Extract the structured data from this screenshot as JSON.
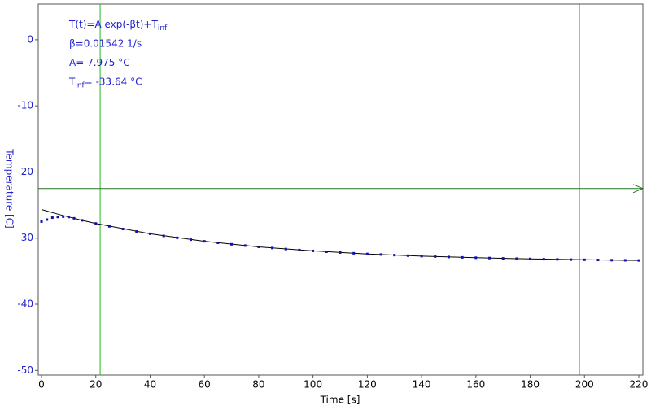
{
  "chart_data": {
    "type": "scatter",
    "x_label": "Time [s]",
    "y_label": "Temperature [C]",
    "xlim": [
      -1.2,
      221.5
    ],
    "ylim": [
      5.4,
      -50.7
    ],
    "xticks": [
      0,
      20,
      40,
      60,
      80,
      100,
      120,
      140,
      160,
      180,
      200,
      220
    ],
    "yticks": [
      0,
      -10,
      -20,
      -30,
      -40,
      -50
    ],
    "annotations": [
      {
        "text": "T(t)=A exp(-βt)+T",
        "sub": "inf"
      },
      {
        "text": "β=0.01542 1/s"
      },
      {
        "text": "A= 7.975 °C"
      },
      {
        "text": "T",
        "sub": "inf",
        "after": "= -33.64 °C"
      }
    ],
    "points": {
      "color": "#1010b0",
      "x": [
        0,
        2,
        4,
        6,
        8,
        10,
        12,
        15,
        20,
        25,
        30,
        35,
        40,
        45,
        50,
        55,
        60,
        65,
        70,
        75,
        80,
        85,
        90,
        95,
        100,
        105,
        110,
        115,
        120,
        125,
        130,
        135,
        140,
        145,
        150,
        155,
        160,
        165,
        170,
        175,
        180,
        185,
        190,
        195,
        200,
        205,
        210,
        215,
        220
      ],
      "values": [
        -27.5,
        -27.2,
        -26.9,
        -26.8,
        -26.75,
        -26.8,
        -27.0,
        -27.31,
        -27.78,
        -28.22,
        -28.62,
        -28.99,
        -29.34,
        -29.66,
        -29.95,
        -30.23,
        -30.48,
        -30.71,
        -30.93,
        -31.13,
        -31.32,
        -31.49,
        -31.65,
        -31.8,
        -31.93,
        -32.06,
        -32.18,
        -32.29,
        -32.39,
        -32.48,
        -32.57,
        -32.65,
        -32.72,
        -32.79,
        -32.85,
        -32.91,
        -32.96,
        -33.01,
        -33.06,
        -33.1,
        -33.14,
        -33.18,
        -33.21,
        -33.25,
        -33.27,
        -33.3,
        -33.33,
        -33.35,
        -33.37
      ]
    },
    "fit": {
      "color": "#000000",
      "x": [
        0,
        5,
        10,
        15,
        20,
        40,
        60,
        80,
        100,
        120,
        140,
        160,
        180,
        200,
        220
      ],
      "values": [
        -25.67,
        -26.26,
        -26.8,
        -27.31,
        -27.78,
        -29.34,
        -30.48,
        -31.32,
        -31.93,
        -32.39,
        -32.72,
        -32.96,
        -33.14,
        -33.27,
        -33.37
      ]
    },
    "cursors": {
      "x1": 21.6,
      "x1_color": "#22bb22",
      "x2": 198.1,
      "x2_color": "#cc2222",
      "y": -22.5,
      "y_color": "#227722"
    }
  }
}
